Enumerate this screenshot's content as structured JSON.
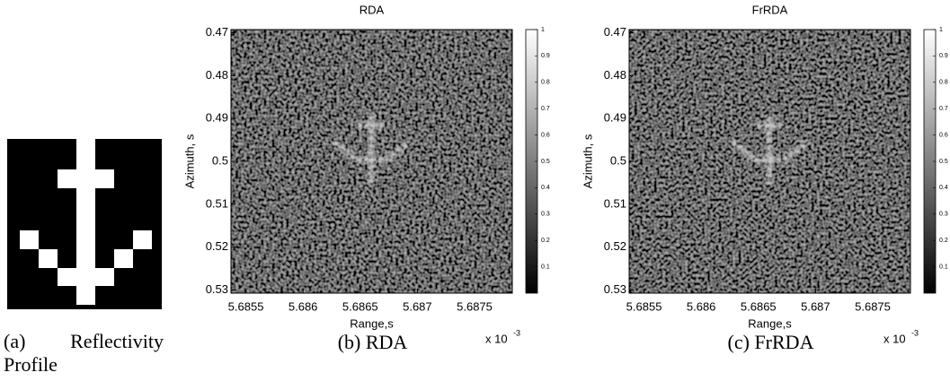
{
  "panels": [
    {
      "caption": "(a) Reflectivity Profile"
    },
    {
      "title": "RDA",
      "xlabel": "Range,s",
      "ylabel": "Azimuth, s",
      "xticks": [
        5.6855,
        5.686,
        5.6865,
        5.687,
        5.6875
      ],
      "xlim": [
        5.68537,
        5.68783
      ],
      "yticks": [
        0.47,
        0.48,
        0.49,
        0.5,
        0.51,
        0.52,
        0.53
      ],
      "ylim": [
        0.4699,
        0.5301
      ],
      "x_multiplier": "x 10",
      "x_exponent": "-3",
      "colorbar_ticks": [
        0.1,
        0.2,
        0.3,
        0.4,
        0.5,
        0.6,
        0.7,
        0.8,
        0.9,
        1
      ],
      "colorbar_lim": [
        0,
        1
      ],
      "caption": "(b) RDA"
    },
    {
      "title": "FrRDA",
      "xlabel": "Range,s",
      "ylabel": "Azimuth, s",
      "xticks": [
        5.6855,
        5.686,
        5.6865,
        5.687,
        5.6875
      ],
      "xlim": [
        5.68537,
        5.68783
      ],
      "yticks": [
        0.47,
        0.48,
        0.49,
        0.5,
        0.51,
        0.52,
        0.53
      ],
      "ylim": [
        0.4699,
        0.5301
      ],
      "x_multiplier": "x 10",
      "x_exponent": "-3",
      "colorbar_ticks": [
        0.1,
        0.2,
        0.3,
        0.4,
        0.5,
        0.6,
        0.7,
        0.8,
        0.9,
        1
      ],
      "colorbar_lim": [
        0,
        1
      ],
      "caption": "(c) FrRDA"
    }
  ]
}
